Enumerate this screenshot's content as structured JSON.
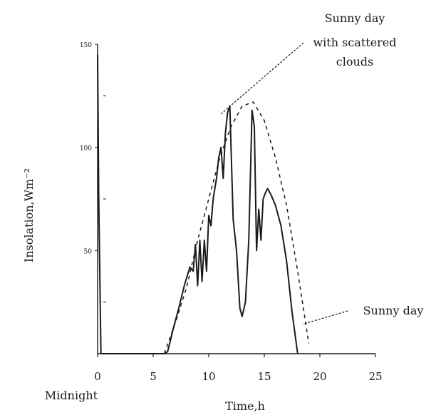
{
  "chart_data": {
    "type": "line",
    "title": "",
    "xlabel": "Time,h",
    "xlabel_sub": "Midnight",
    "ylabel": "Insolation,Wm⁻²",
    "xlim": [
      0,
      25
    ],
    "ylim": [
      0,
      150
    ],
    "x_ticks": [
      0,
      5,
      10,
      15,
      20,
      25
    ],
    "y_ticks": [
      50,
      100,
      150
    ],
    "y_tick_labels": [
      "50",
      "100",
      "150"
    ],
    "grid": false,
    "series": [
      {
        "name": "Sunny day",
        "style": "dashed",
        "x": [
          6,
          7,
          8,
          9,
          10,
          11,
          12,
          13,
          14,
          15,
          16,
          17,
          18,
          19
        ],
        "y": [
          0,
          15,
          32,
          55,
          75,
          95,
          110,
          120,
          122,
          113,
          95,
          72,
          40,
          5
        ]
      },
      {
        "name": "Sunny day with scattered clouds",
        "style": "solid",
        "x": [
          0,
          0.1,
          0.3,
          6,
          6.3,
          6.8,
          7.3,
          7.8,
          8.3,
          8.6,
          8.8,
          9.0,
          9.2,
          9.4,
          9.6,
          9.8,
          10.0,
          10.2,
          10.4,
          10.7,
          10.9,
          11.1,
          11.3,
          11.5,
          11.7,
          11.9,
          12.2,
          12.5,
          12.8,
          13.0,
          13.3,
          13.6,
          13.9,
          14.1,
          14.3,
          14.5,
          14.7,
          14.9,
          15.1,
          15.3,
          15.6,
          16.0,
          16.5,
          17.0,
          17.5,
          18.0
        ],
        "y": [
          145,
          75,
          0,
          0,
          1,
          12,
          22,
          33,
          42,
          40,
          53,
          33,
          55,
          35,
          55,
          40,
          67,
          62,
          75,
          85,
          95,
          100,
          85,
          107,
          117,
          120,
          65,
          50,
          22,
          18,
          25,
          55,
          118,
          110,
          50,
          70,
          55,
          75,
          78,
          80,
          77,
          72,
          62,
          45,
          20,
          0
        ]
      }
    ],
    "annotations": [
      {
        "text": "Sunny day with scattered clouds",
        "x": 10.6,
        "y": 118
      },
      {
        "text": "Sunny day",
        "x": 18.2,
        "y": 15
      }
    ]
  },
  "annotation_lines": {
    "cloudy": [
      "Sunny day",
      "with scattered",
      "clouds"
    ],
    "sunny": [
      "Sunny day"
    ]
  },
  "colors": {
    "ink": "#1a1a1a",
    "background": "#ffffff"
  }
}
